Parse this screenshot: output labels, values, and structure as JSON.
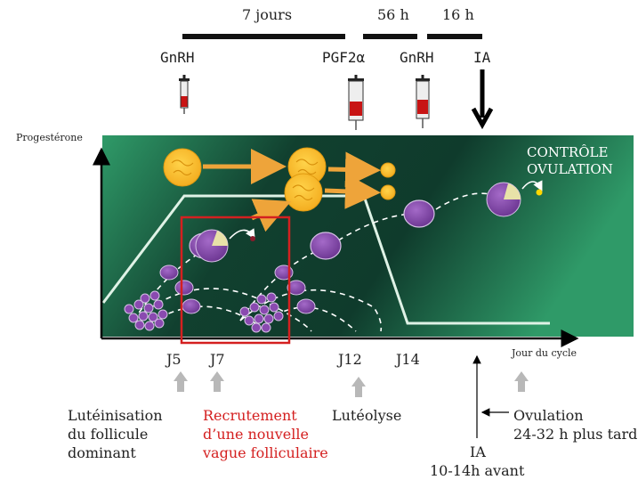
{
  "timeline": {
    "seg1": "7 jours",
    "seg2": "56 h",
    "seg3": "16 h"
  },
  "injections": {
    "gnrh1": "GnRH",
    "pgf2a": "PGF2α",
    "gnrh2": "GnRH",
    "ia": "IA"
  },
  "axes": {
    "ylabel": "Progestérone",
    "xlabel": "Jour du cycle"
  },
  "panel": {
    "note_line1": "CONTRÔLE",
    "note_line2": "OVULATION"
  },
  "days": {
    "j5": "J5",
    "j7": "J7",
    "j12": "J12",
    "j14": "J14"
  },
  "notes": {
    "lut_1": "Lutéinisation",
    "lut_2": "du follicule",
    "lut_3": "dominant",
    "rec_1": "Recrutement",
    "rec_2": "d’une nouvelle",
    "rec_3": "vague folliculaire",
    "luteolyse": "Lutéolyse",
    "ia_label": "IA",
    "ia_sub": "10-14h avant",
    "ov_1": "Ovulation",
    "ov_2": "24-32 h plus tard"
  },
  "colors": {
    "panel_dark": "#0f3b2c",
    "panel_light": "#2f9a68",
    "follicle": "#7a3f9e",
    "corpus_luteum": "#f5b818",
    "arrow_orange": "#eea43a",
    "highlight_box": "#d42020"
  }
}
